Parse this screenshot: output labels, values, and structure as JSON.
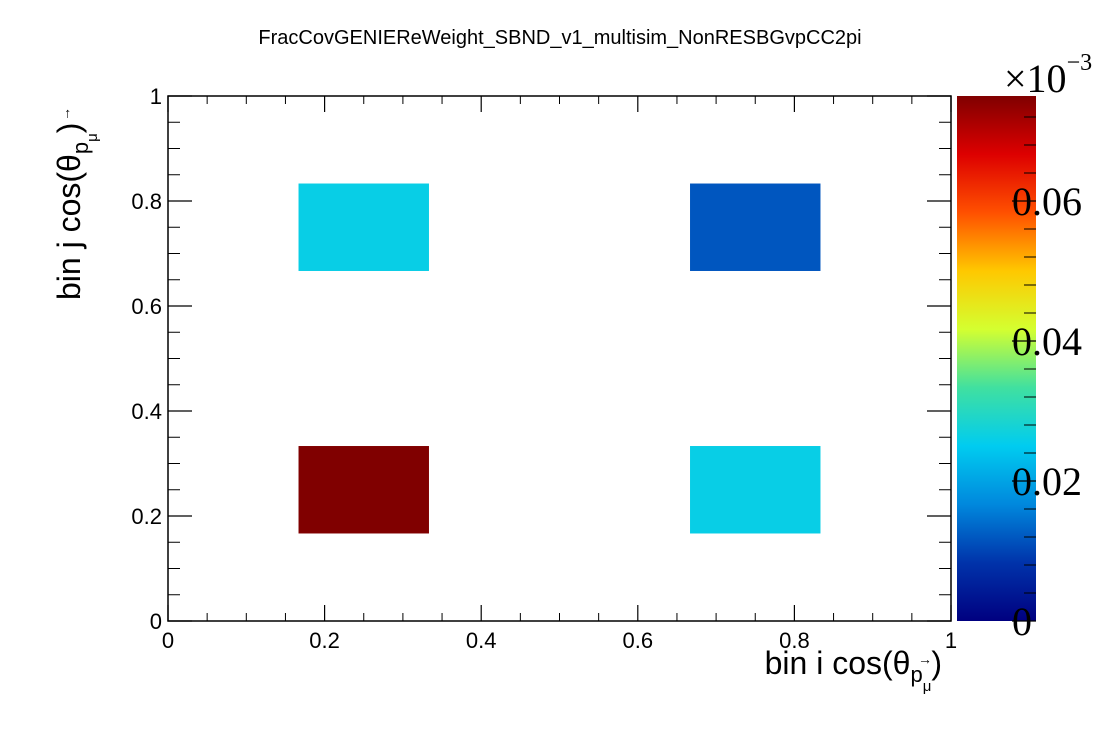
{
  "chart_data": {
    "type": "heatmap",
    "title": "FracCovGENIEReWeight_SBND_v1_multisim_NonRESBGvpCC2pi",
    "xlabel": {
      "main": "bin i cos(θ",
      "sub": "p",
      "subsub": "μ",
      "close": ")"
    },
    "ylabel": {
      "main": "bin j cos(θ",
      "sub": "p",
      "subsub": "μ",
      "close": ")"
    },
    "xlim": [
      0,
      1
    ],
    "ylim": [
      0,
      1
    ],
    "x_ticks": [
      {
        "value": 0,
        "label": "0"
      },
      {
        "value": 0.2,
        "label": "0.2"
      },
      {
        "value": 0.4,
        "label": "0.4"
      },
      {
        "value": 0.6,
        "label": "0.6"
      },
      {
        "value": 0.8,
        "label": "0.8"
      },
      {
        "value": 1,
        "label": "1"
      }
    ],
    "y_ticks": [
      {
        "value": 0,
        "label": "0"
      },
      {
        "value": 0.2,
        "label": "0.2"
      },
      {
        "value": 0.4,
        "label": "0.4"
      },
      {
        "value": 0.6,
        "label": "0.6"
      },
      {
        "value": 0.8,
        "label": "0.8"
      },
      {
        "value": 1,
        "label": "1"
      }
    ],
    "cells": [
      {
        "x0": 0.1667,
        "x1": 0.3333,
        "y0": 0.1667,
        "y1": 0.3333,
        "value": 0.075
      },
      {
        "x0": 0.6667,
        "x1": 0.8333,
        "y0": 0.1667,
        "y1": 0.3333,
        "value": 0.026
      },
      {
        "x0": 0.1667,
        "x1": 0.3333,
        "y0": 0.6667,
        "y1": 0.8333,
        "value": 0.026
      },
      {
        "x0": 0.6667,
        "x1": 0.8333,
        "y0": 0.6667,
        "y1": 0.8333,
        "value": 0.0118
      }
    ],
    "colorbar": {
      "zlim": [
        0,
        0.075
      ],
      "exponent_label": {
        "base": "×10",
        "exp": "−3"
      },
      "ticks": [
        {
          "value": 0,
          "label": "0"
        },
        {
          "value": 0.02,
          "label": "0.02"
        },
        {
          "value": 0.04,
          "label": "0.04"
        },
        {
          "value": 0.06,
          "label": "0.06"
        }
      ],
      "colors": [
        "#000080",
        "#0033aa",
        "#0088dd",
        "#00ccf0",
        "#40e0a0",
        "#d4ff30",
        "#ffc800",
        "#ff5000",
        "#dd0000",
        "#800000"
      ]
    }
  }
}
